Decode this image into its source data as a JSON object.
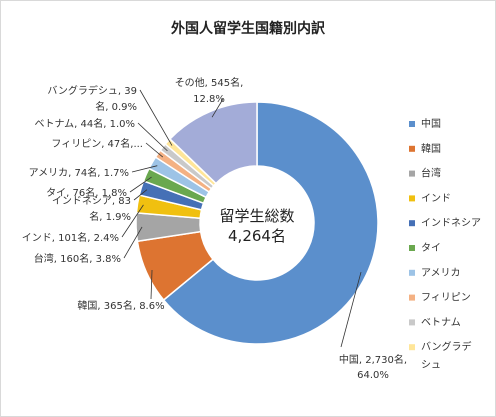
{
  "chart_data": {
    "type": "pie",
    "title": "外国人留学生国籍別内訳",
    "center_label": [
      "留学生総数",
      "4,264名"
    ],
    "slices": [
      {
        "name": "中国",
        "value": 2730,
        "percent": 64.0,
        "color": "#5b8fcc",
        "label": [
          "中国, 2,730名,",
          "64.0%"
        ]
      },
      {
        "name": "韓国",
        "value": 365,
        "percent": 8.6,
        "color": "#dd7431",
        "label": [
          "韓国, 365名, 8.6%"
        ]
      },
      {
        "name": "台湾",
        "value": 160,
        "percent": 3.8,
        "color": "#a5a5a5",
        "label": [
          "台湾, 160名, 3.8%"
        ]
      },
      {
        "name": "インド",
        "value": 101,
        "percent": 2.4,
        "color": "#f0c010",
        "label": [
          "インド, 101名, 2.4%"
        ]
      },
      {
        "name": "インドネシア",
        "value": 83,
        "percent": 1.9,
        "color": "#4570b6",
        "label": [
          "インドネシア, 83",
          "名, 1.9%"
        ]
      },
      {
        "name": "タイ",
        "value": 76,
        "percent": 1.8,
        "color": "#6aa84f",
        "label": [
          "タイ, 76名, 1.8%"
        ]
      },
      {
        "name": "アメリカ",
        "value": 74,
        "percent": 1.7,
        "color": "#9dc3e6",
        "label": [
          "アメリカ, 74名, 1.7%"
        ]
      },
      {
        "name": "フィリピン",
        "value": 47,
        "percent": 1.1,
        "color": "#f4b183",
        "label": [
          "フィリピン, 47名,..."
        ]
      },
      {
        "name": "ベトナム",
        "value": 44,
        "percent": 1.0,
        "color": "#c9c9c9",
        "label": [
          "ベトナム, 44名, 1.0%"
        ]
      },
      {
        "name": "バングラデシュ",
        "value": 39,
        "percent": 0.9,
        "color": "#ffe699",
        "label": [
          "バングラデシュ, 39",
          "名, 0.9%"
        ]
      },
      {
        "name": "その他",
        "value": 545,
        "percent": 12.8,
        "color": "#a3acd8",
        "label": [
          "その他, 545名,",
          "12.8%"
        ]
      }
    ],
    "legend": {
      "position": "right",
      "items": [
        "中国",
        "韓国",
        "台湾",
        "インド",
        "インドネシア",
        "タイ",
        "アメリカ",
        "フィリピン",
        "ベトナム",
        "バングラデシュ"
      ]
    }
  }
}
